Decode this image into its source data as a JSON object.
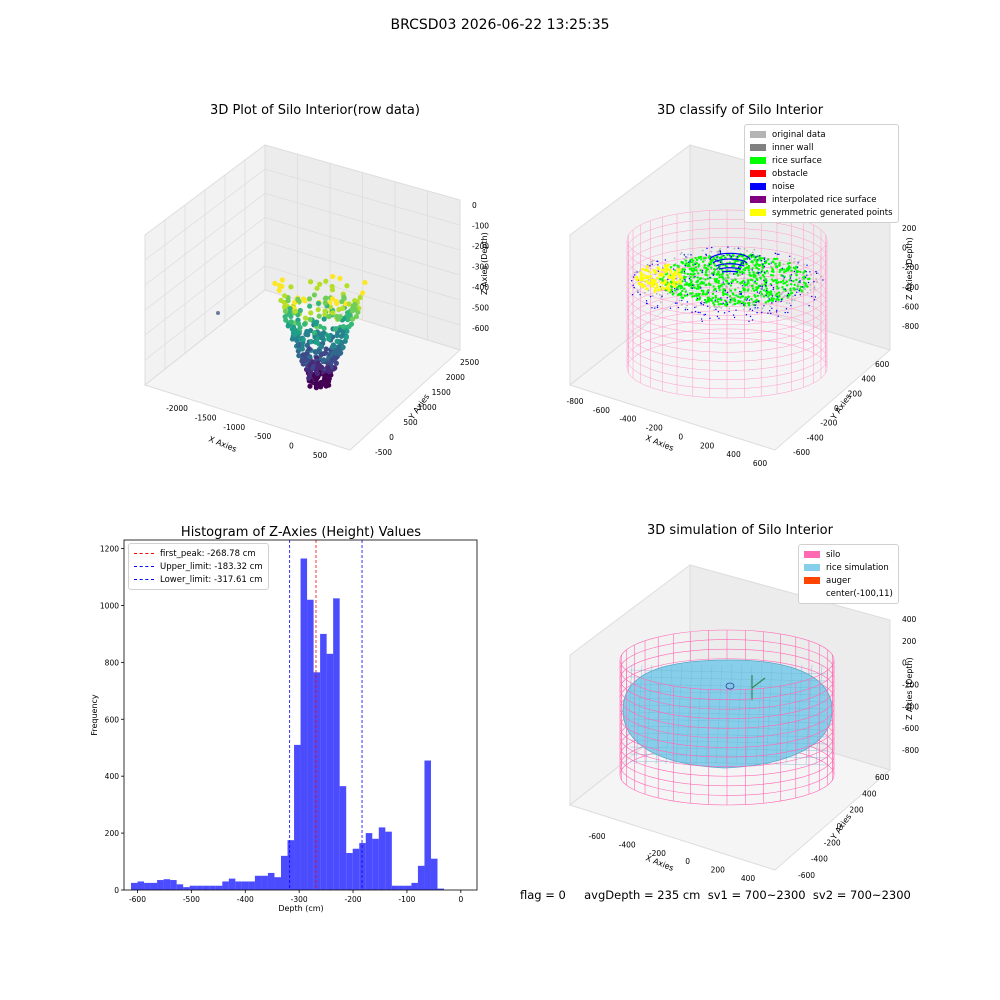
{
  "suptitle": "BRCSD03 2026-06-22 13:25:35",
  "status_line": "flag = 0     avgDepth = 235 cm  sv1 = 700~2300  sv2 = 700~2300",
  "panels": {
    "raw": {
      "title": "3D Plot of Silo Interior(row data)",
      "xlabel": "X Axies",
      "ylabel": "Y Axies",
      "zlabel": "Z Axies (Depth)",
      "xticks": [
        "-2000",
        "-1500",
        "-1000",
        "-500",
        "0",
        "500"
      ],
      "yticks": [
        "-500",
        "0",
        "500",
        "1000",
        "1500",
        "2000",
        "2500"
      ],
      "zticks": [
        "0",
        "-100",
        "-200",
        "-300",
        "-400",
        "-500",
        "-600"
      ]
    },
    "classify": {
      "title": "3D classify of Silo Interior",
      "xlabel": "X Axies",
      "ylabel": "Y Axies",
      "zlabel": "Z Axies (Depth)",
      "xticks": [
        "-800",
        "-600",
        "-400",
        "-200",
        "0",
        "200",
        "400",
        "600"
      ],
      "yticks": [
        "-600",
        "-400",
        "-200",
        "0",
        "200",
        "400",
        "600"
      ],
      "zticks": [
        "200",
        "0",
        "-200",
        "-400",
        "-600",
        "-800"
      ],
      "legend": [
        {
          "label": "original data",
          "color": "#b4b4b4"
        },
        {
          "label": "inner wall",
          "color": "#808080"
        },
        {
          "label": "rice surface",
          "color": "#00ff00"
        },
        {
          "label": "obstacle",
          "color": "#ff0000"
        },
        {
          "label": "noise",
          "color": "#0000ff"
        },
        {
          "label": "interpolated rice surface",
          "color": "#800080"
        },
        {
          "label": "symmetric generated points",
          "color": "#ffff00"
        }
      ]
    },
    "simulation": {
      "title": "3D simulation of Silo Interior",
      "xlabel": "X Axies",
      "ylabel": "Y Axies",
      "zlabel": "Z Axies (Depth)",
      "xticks": [
        "-600",
        "-400",
        "-200",
        "0",
        "200",
        "400"
      ],
      "yticks": [
        "-600",
        "-400",
        "-200",
        "0",
        "200",
        "400",
        "600"
      ],
      "zticks": [
        "400",
        "200",
        "0",
        "-200",
        "-400",
        "-600",
        "-800"
      ],
      "legend": [
        {
          "label": "silo",
          "color": "#ff69b4"
        },
        {
          "label": "rice simulation",
          "color": "#87ceeb"
        },
        {
          "label": "auger",
          "color": "#ff4500"
        },
        {
          "label": "center(-100,11)",
          "color": ""
        }
      ]
    }
  },
  "chart_data": {
    "type": "bar",
    "title": "Histogram of Z-Axies (Height) Values",
    "xlabel": "Depth (cm)",
    "ylabel": "Frequency",
    "xlim": [
      -625,
      30
    ],
    "ylim": [
      0,
      1230
    ],
    "xticks": [
      -600,
      -500,
      -400,
      -300,
      -200,
      -100,
      0
    ],
    "yticks": [
      0,
      200,
      400,
      600,
      800,
      1000,
      1200
    ],
    "bar_color": "#0000ff",
    "bins_start": -612,
    "bin_width": 12.1,
    "values": [
      25,
      30,
      25,
      25,
      35,
      38,
      35,
      20,
      10,
      15,
      15,
      15,
      15,
      15,
      30,
      40,
      30,
      30,
      30,
      50,
      50,
      60,
      45,
      120,
      175,
      510,
      1165,
      1020,
      765,
      900,
      830,
      1025,
      365,
      130,
      145,
      165,
      200,
      180,
      220,
      205,
      15,
      15,
      15,
      25,
      85,
      455,
      110,
      5
    ],
    "lines": [
      {
        "label": "first_peak: -268.78 cm",
        "x": -268.78,
        "color": "#ff0000"
      },
      {
        "label": "Upper_limit: -183.32 cm",
        "x": -183.32,
        "color": "#0000ff"
      },
      {
        "label": "Lower_limit: -317.61 cm",
        "x": -317.61,
        "color": "#0000ff"
      }
    ]
  }
}
